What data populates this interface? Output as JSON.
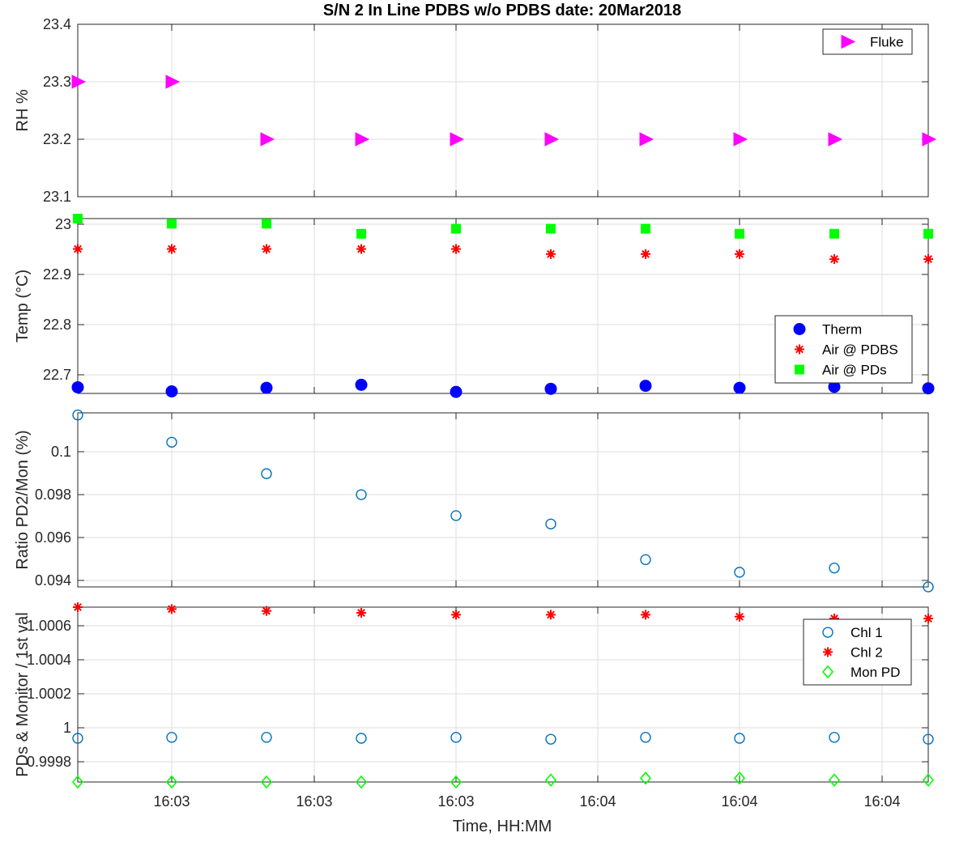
{
  "chart_data": {
    "title": "S/N 2 In Line PDBS w/o PDBS date: 20Mar2018",
    "xlabel": "Time, HH:MM",
    "x_tick_labels": [
      "16:03",
      "16:03",
      "16:03",
      "16:04",
      "16:04",
      "16:04",
      "16:04"
    ],
    "grid": true,
    "panels": [
      {
        "type": "scatter",
        "ylabel": "RH %",
        "ylim": [
          23.1,
          23.4
        ],
        "yticks": [
          "23.1",
          "23.2",
          "23.3",
          "23.4"
        ],
        "legend_position": "top-right",
        "series": [
          {
            "name": "Fluke",
            "marker": "triangle-right",
            "color": "#ff00ff",
            "values": [
              23.3,
              23.3,
              23.2,
              23.2,
              23.2,
              23.2,
              23.2,
              23.2,
              23.2,
              23.2
            ]
          }
        ]
      },
      {
        "type": "scatter",
        "ylabel": "Temp (°C)",
        "ylim": [
          22.665,
          23.01
        ],
        "yticks": [
          "22.7",
          "22.8",
          "22.9",
          "23"
        ],
        "legend_position": "bottom-right",
        "series": [
          {
            "name": "Therm",
            "marker": "filled-circle",
            "color": "#0000ff",
            "values": [
              22.677,
              22.669,
              22.676,
              22.682,
              22.668,
              22.674,
              22.68,
              22.676,
              22.678,
              22.675
            ]
          },
          {
            "name": "Air @ PDBS",
            "marker": "asterisk",
            "color": "#ff0000",
            "values": [
              22.95,
              22.95,
              22.95,
              22.95,
              22.95,
              22.94,
              22.94,
              22.94,
              22.93,
              22.93
            ]
          },
          {
            "name": "Air @ PDs",
            "marker": "filled-square",
            "color": "#00ff00",
            "values": [
              23.01,
              23.0,
              23.0,
              22.98,
              22.99,
              22.99,
              22.99,
              22.98,
              22.98,
              22.98
            ]
          }
        ]
      },
      {
        "type": "scatter",
        "ylabel": "Ratio PD2/Mon (%)",
        "ylim": [
          0.0937,
          0.102
        ],
        "yticks": [
          "0.094",
          "0.096",
          "0.098",
          "0.1"
        ],
        "series": [
          {
            "name": "",
            "marker": "open-circle",
            "color": "#0072bd",
            "values": [
              0.1019,
              0.1006,
              0.0991,
              0.0981,
              0.0971,
              0.0967,
              0.095,
              0.0944,
              0.0946,
              0.0937
            ]
          }
        ]
      },
      {
        "type": "scatter",
        "ylabel": "PDs & Monitor / 1st val",
        "ylim": [
          0.99977,
          1.00069
        ],
        "yticks": [
          "0.9998",
          "1",
          "1.0002",
          "1.0004",
          "1.0006"
        ],
        "legend_position": "top-right",
        "series": [
          {
            "name": "Chl 1",
            "marker": "open-circle",
            "color": "#0072bd",
            "values": [
              1.0,
              1.000005,
              1.000005,
              1.0,
              1.000005,
              0.999995,
              1.000005,
              1.0,
              1.000005,
              0.999995
            ]
          },
          {
            "name": "Chl 2",
            "marker": "asterisk",
            "color": "#ff0000",
            "values": [
              1.00069,
              1.00068,
              1.00067,
              1.00066,
              1.00065,
              1.00065,
              1.00065,
              1.00064,
              1.00063,
              1.00063
            ]
          },
          {
            "name": "Mon PD",
            "marker": "open-diamond",
            "color": "#00ff00",
            "values": [
              0.99977,
              0.99977,
              0.99977,
              0.99977,
              0.99977,
              0.99978,
              0.99979,
              0.99979,
              0.99978,
              0.99978
            ]
          }
        ]
      }
    ]
  }
}
